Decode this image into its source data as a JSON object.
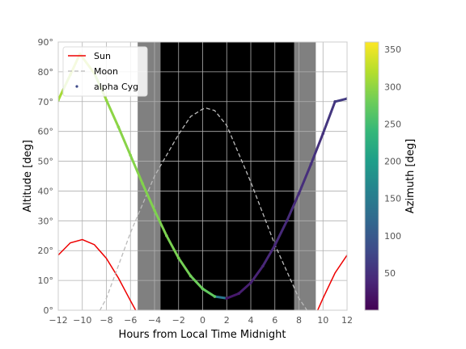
{
  "chart_data": {
    "type": "line",
    "xlabel": "Hours from Local Time Midnight",
    "ylabel": "Altitude [deg]",
    "xlim": [
      -12,
      12
    ],
    "ylim": [
      0,
      90
    ],
    "xticks": [
      -12,
      -10,
      -8,
      -6,
      -4,
      -2,
      0,
      2,
      4,
      6,
      8,
      10,
      12
    ],
    "yticks": [
      0,
      10,
      20,
      30,
      40,
      50,
      60,
      70,
      80,
      90
    ],
    "ytick_suffix": "°",
    "grid": true,
    "legend_position": "top-left",
    "shading": [
      {
        "start": -5.4,
        "end": 9.4,
        "color": "#808080"
      },
      {
        "start": -3.5,
        "end": 7.6,
        "color": "#000000"
      }
    ],
    "colorbar": {
      "label": "Azimuth [deg]",
      "range": [
        0,
        360
      ],
      "ticks": [
        50,
        100,
        150,
        200,
        250,
        300,
        350
      ],
      "colormap": "viridis"
    },
    "series": [
      {
        "name": "Sun",
        "style": "solid",
        "color": "#ee0000",
        "x": [
          -12,
          -11,
          -10,
          -9,
          -8,
          -7,
          -6,
          -5.5,
          -5.25
        ],
        "y": [
          18.5,
          22.6,
          23.7,
          22,
          17.4,
          10.8,
          3.2,
          -0.5,
          -2
        ],
        "x2": [
          9.25,
          9.5,
          10,
          11,
          12
        ],
        "y2": [
          -2,
          -0.5,
          4,
          12.5,
          18.5
        ]
      },
      {
        "name": "Moon",
        "style": "dashed",
        "color": "#bbbbbb",
        "x": [
          -8.8,
          -8,
          -6,
          -4,
          -2,
          -1,
          0,
          0.3,
          1,
          2,
          4,
          6,
          8,
          9,
          9.5
        ],
        "y": [
          -2,
          4,
          26,
          45,
          59,
          65,
          67.5,
          67.8,
          67,
          62,
          43,
          22,
          4,
          -2,
          -4
        ]
      },
      {
        "name": "alpha Cyg",
        "style": "points",
        "x": [
          -12,
          -11,
          -10.2,
          -9,
          -8,
          -7,
          -6,
          -5,
          -4,
          -3,
          -2,
          -1,
          0,
          1,
          2,
          3,
          4,
          5,
          6,
          7,
          8,
          9,
          10,
          11,
          12
        ],
        "y": [
          70.5,
          79,
          86,
          79.5,
          70.5,
          61.5,
          52,
          42.5,
          33.5,
          25,
          17.5,
          11.5,
          7.2,
          4.6,
          4,
          5.6,
          9.2,
          14.8,
          21.8,
          30,
          39.2,
          49,
          59.3,
          70,
          71
        ],
        "azimuth": [
          305,
          318,
          330,
          310,
          300,
          296,
          294,
          292,
          290,
          288,
          286,
          282,
          276,
          268,
          20,
          28,
          34,
          38,
          41,
          44,
          46,
          49,
          52,
          60,
          64
        ]
      }
    ]
  }
}
